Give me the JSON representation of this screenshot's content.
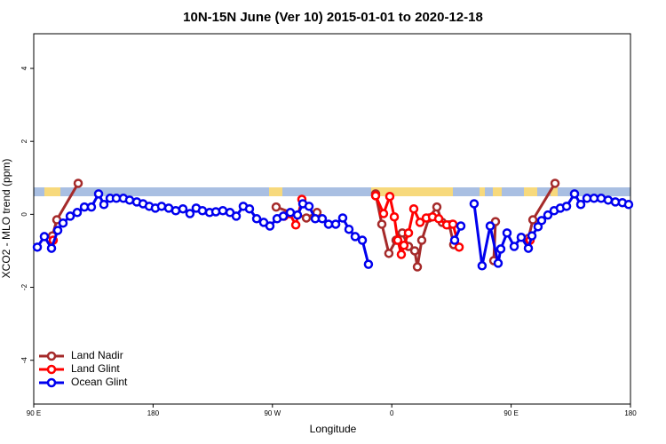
{
  "chart_data": {
    "type": "line",
    "title": "10N-15N June (Ver 10)   2015-01-01 to 2020-12-18",
    "x_label": "Longitude",
    "y_label": "XCO2 - MLO trend (ppm)",
    "xlim": [
      90,
      540
    ],
    "ylim": [
      -5.2,
      4.95
    ],
    "xticks": [
      {
        "value": 90,
        "label": "90 E"
      },
      {
        "value": 180,
        "label": "180"
      },
      {
        "value": 270,
        "label": "90 W"
      },
      {
        "value": 360,
        "label": "0"
      },
      {
        "value": 450,
        "label": "90 E"
      },
      {
        "value": 540,
        "label": "180"
      }
    ],
    "yticks": [
      4,
      2,
      0,
      -2,
      -4
    ],
    "legend": "bottom-left",
    "series": [
      {
        "name": "Land Nadir",
        "color": "#a52a2a",
        "x": [
          104.1,
          107.4,
          123.5,
          null,
          272.8,
          295.6,
          303.6,
          null,
          347.8,
          352.5,
          357.8,
          363.2,
          367.9,
          372.6,
          377.3,
          379.3,
          382.6,
          388.0,
          394.0,
          398.0,
          403.4,
          406.7,
          null,
          436.9,
          438.2,
          null,
          463.0,
          466.4,
          483.1
        ],
        "values": [
          -0.59,
          -0.15,
          0.85,
          null,
          0.2,
          -0.1,
          0.05,
          null,
          0.56,
          -0.27,
          -1.07,
          -0.71,
          -0.51,
          -0.88,
          -1.0,
          -1.44,
          -0.71,
          -0.1,
          0.2,
          -0.22,
          -0.29,
          -0.83,
          null,
          -1.27,
          -0.2,
          null,
          -0.66,
          -0.15,
          0.85
        ]
      },
      {
        "name": "Land Glint",
        "color": "#ff0000",
        "x": [
          104.7,
          null,
          278.8,
          282.9,
          287.6,
          292.2,
          null,
          347.8,
          353.8,
          358.5,
          361.9,
          364.5,
          367.2,
          369.2,
          372.6,
          376.6,
          381.3,
          386.0,
          390.7,
          395.4,
          401.4,
          406.1,
          410.8,
          null,
          464.3
        ],
        "values": [
          -0.71,
          null,
          -0.05,
          0.02,
          -0.29,
          0.41,
          null,
          0.51,
          0.02,
          0.49,
          -0.07,
          -0.71,
          -1.1,
          -0.85,
          -0.51,
          0.15,
          -0.22,
          -0.1,
          -0.07,
          -0.12,
          -0.29,
          -0.27,
          -0.9,
          null,
          -0.71
        ]
      },
      {
        "name": "Ocean Glint",
        "color": "#0000ee",
        "x": [
          92.7,
          98.0,
          103.4,
          108.1,
          112.1,
          117.5,
          122.8,
          128.2,
          133.5,
          138.9,
          142.9,
          147.6,
          152.3,
          157.6,
          162.3,
          167.7,
          172.4,
          177.1,
          181.7,
          186.4,
          191.8,
          197.1,
          202.5,
          207.8,
          212.5,
          217.2,
          222.6,
          227.3,
          232.6,
          238.0,
          242.7,
          248.0,
          252.7,
          258.1,
          263.4,
          268.1,
          273.5,
          278.2,
          283.5,
          288.9,
          292.9,
          297.6,
          302.3,
          307.6,
          312.3,
          317.7,
          323.0,
          327.7,
          332.4,
          337.8,
          342.4,
          null,
          407.4,
          412.1,
          null,
          422.1,
          428.1,
          434.2,
          440.2,
          442.2,
          446.9,
          452.3,
          457.6,
          463.0,
          465.7,
          470.3,
          473.0,
          477.7,
          482.4,
          487.1,
          491.8,
          497.8,
          502.5,
          507.2,
          512.5,
          517.9,
          523.2,
          528.6,
          533.9,
          538.6
        ],
        "values": [
          -0.9,
          -0.61,
          -0.93,
          -0.44,
          -0.24,
          -0.05,
          0.05,
          0.2,
          0.2,
          0.56,
          0.27,
          0.44,
          0.44,
          0.44,
          0.39,
          0.34,
          0.29,
          0.22,
          0.17,
          0.22,
          0.17,
          0.1,
          0.15,
          0.02,
          0.17,
          0.1,
          0.05,
          0.07,
          0.1,
          0.05,
          -0.05,
          0.22,
          0.15,
          -0.12,
          -0.22,
          -0.32,
          -0.12,
          -0.05,
          0.05,
          -0.02,
          0.29,
          0.22,
          -0.12,
          -0.12,
          -0.27,
          -0.27,
          -0.1,
          -0.41,
          -0.61,
          -0.71,
          -1.37,
          null,
          -0.71,
          -0.32,
          null,
          0.29,
          -1.41,
          -0.32,
          -1.34,
          -0.95,
          -0.51,
          -0.88,
          -0.63,
          -0.93,
          -0.59,
          -0.34,
          -0.17,
          -0.02,
          0.1,
          0.17,
          0.22,
          0.56,
          0.27,
          0.44,
          0.44,
          0.44,
          0.39,
          0.34,
          0.32,
          0.27
        ]
      }
    ]
  }
}
